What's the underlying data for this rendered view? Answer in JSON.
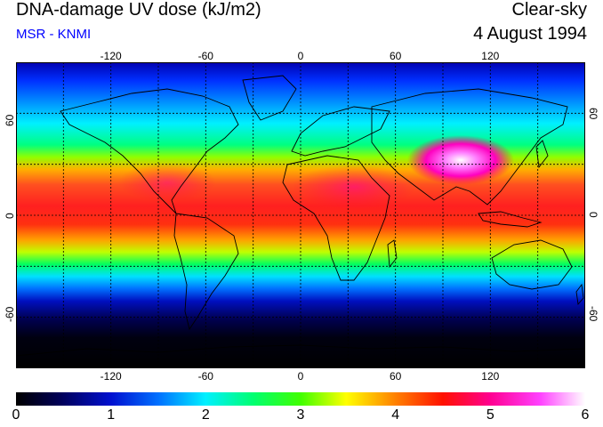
{
  "header": {
    "title": "DNA-damage UV dose (kJ/m2)",
    "subtitle": "MSR - KNMI",
    "condition": "Clear-sky",
    "date": "4 August 1994"
  },
  "map": {
    "projection": "equirectangular",
    "lon_range": [
      -180,
      180
    ],
    "lat_range": [
      -90,
      90
    ],
    "graticule": "dashed, every 30 degrees",
    "lon_tick_labels": [
      "-120",
      "-60",
      "0",
      "60",
      "120"
    ],
    "lat_tick_labels": [
      "60",
      "0",
      "-60"
    ]
  },
  "colorbar": {
    "ticks": [
      "0",
      "1",
      "2",
      "3",
      "4",
      "5",
      "6"
    ],
    "colors": [
      "#000000",
      "#0000a8",
      "#0060ff",
      "#00ffff",
      "#00ff00",
      "#ffff00",
      "#ff8000",
      "#ff0000",
      "#ff0090",
      "#ff40ff",
      "#ffffff"
    ]
  }
}
